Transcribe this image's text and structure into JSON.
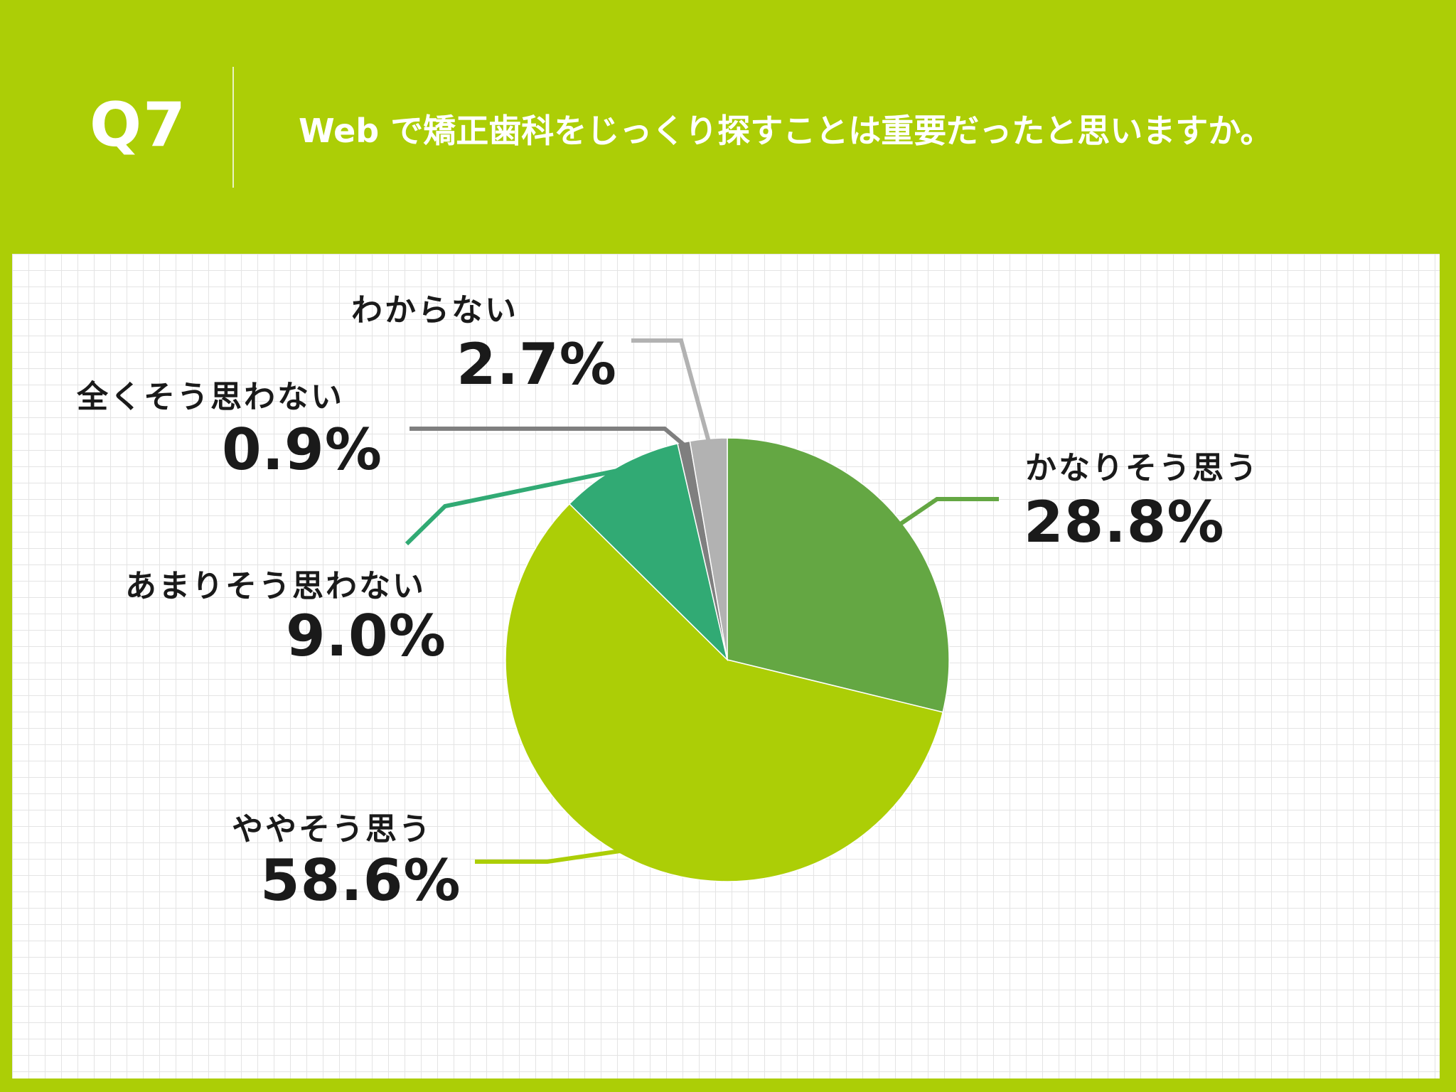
{
  "header": {
    "question_number": "Q7",
    "question_text": "Web で矯正歯科をじっくり探すことは重要だったと思いますか。"
  },
  "chart_data": {
    "type": "pie",
    "title": "",
    "slices": [
      {
        "label": "かなりそう思う",
        "value": 28.8,
        "value_label": "28.8%",
        "color": "#64a743"
      },
      {
        "label": "ややそう思う",
        "value": 58.6,
        "value_label": "58.6%",
        "color": "#acce06"
      },
      {
        "label": "あまりそう思わない",
        "value": 9.0,
        "value_label": "9.0%",
        "color": "#31aa74"
      },
      {
        "label": "全くそう思わない",
        "value": 0.9,
        "value_label": "0.9%",
        "color": "#7f7f7f"
      },
      {
        "label": "わからない",
        "value": 2.7,
        "value_label": "2.7%",
        "color": "#b2b2b2"
      }
    ]
  },
  "colors": {
    "background": "#acce06",
    "panel": "#ffffff",
    "grid": "#e4e4e4",
    "text": "#1a1a1a"
  }
}
